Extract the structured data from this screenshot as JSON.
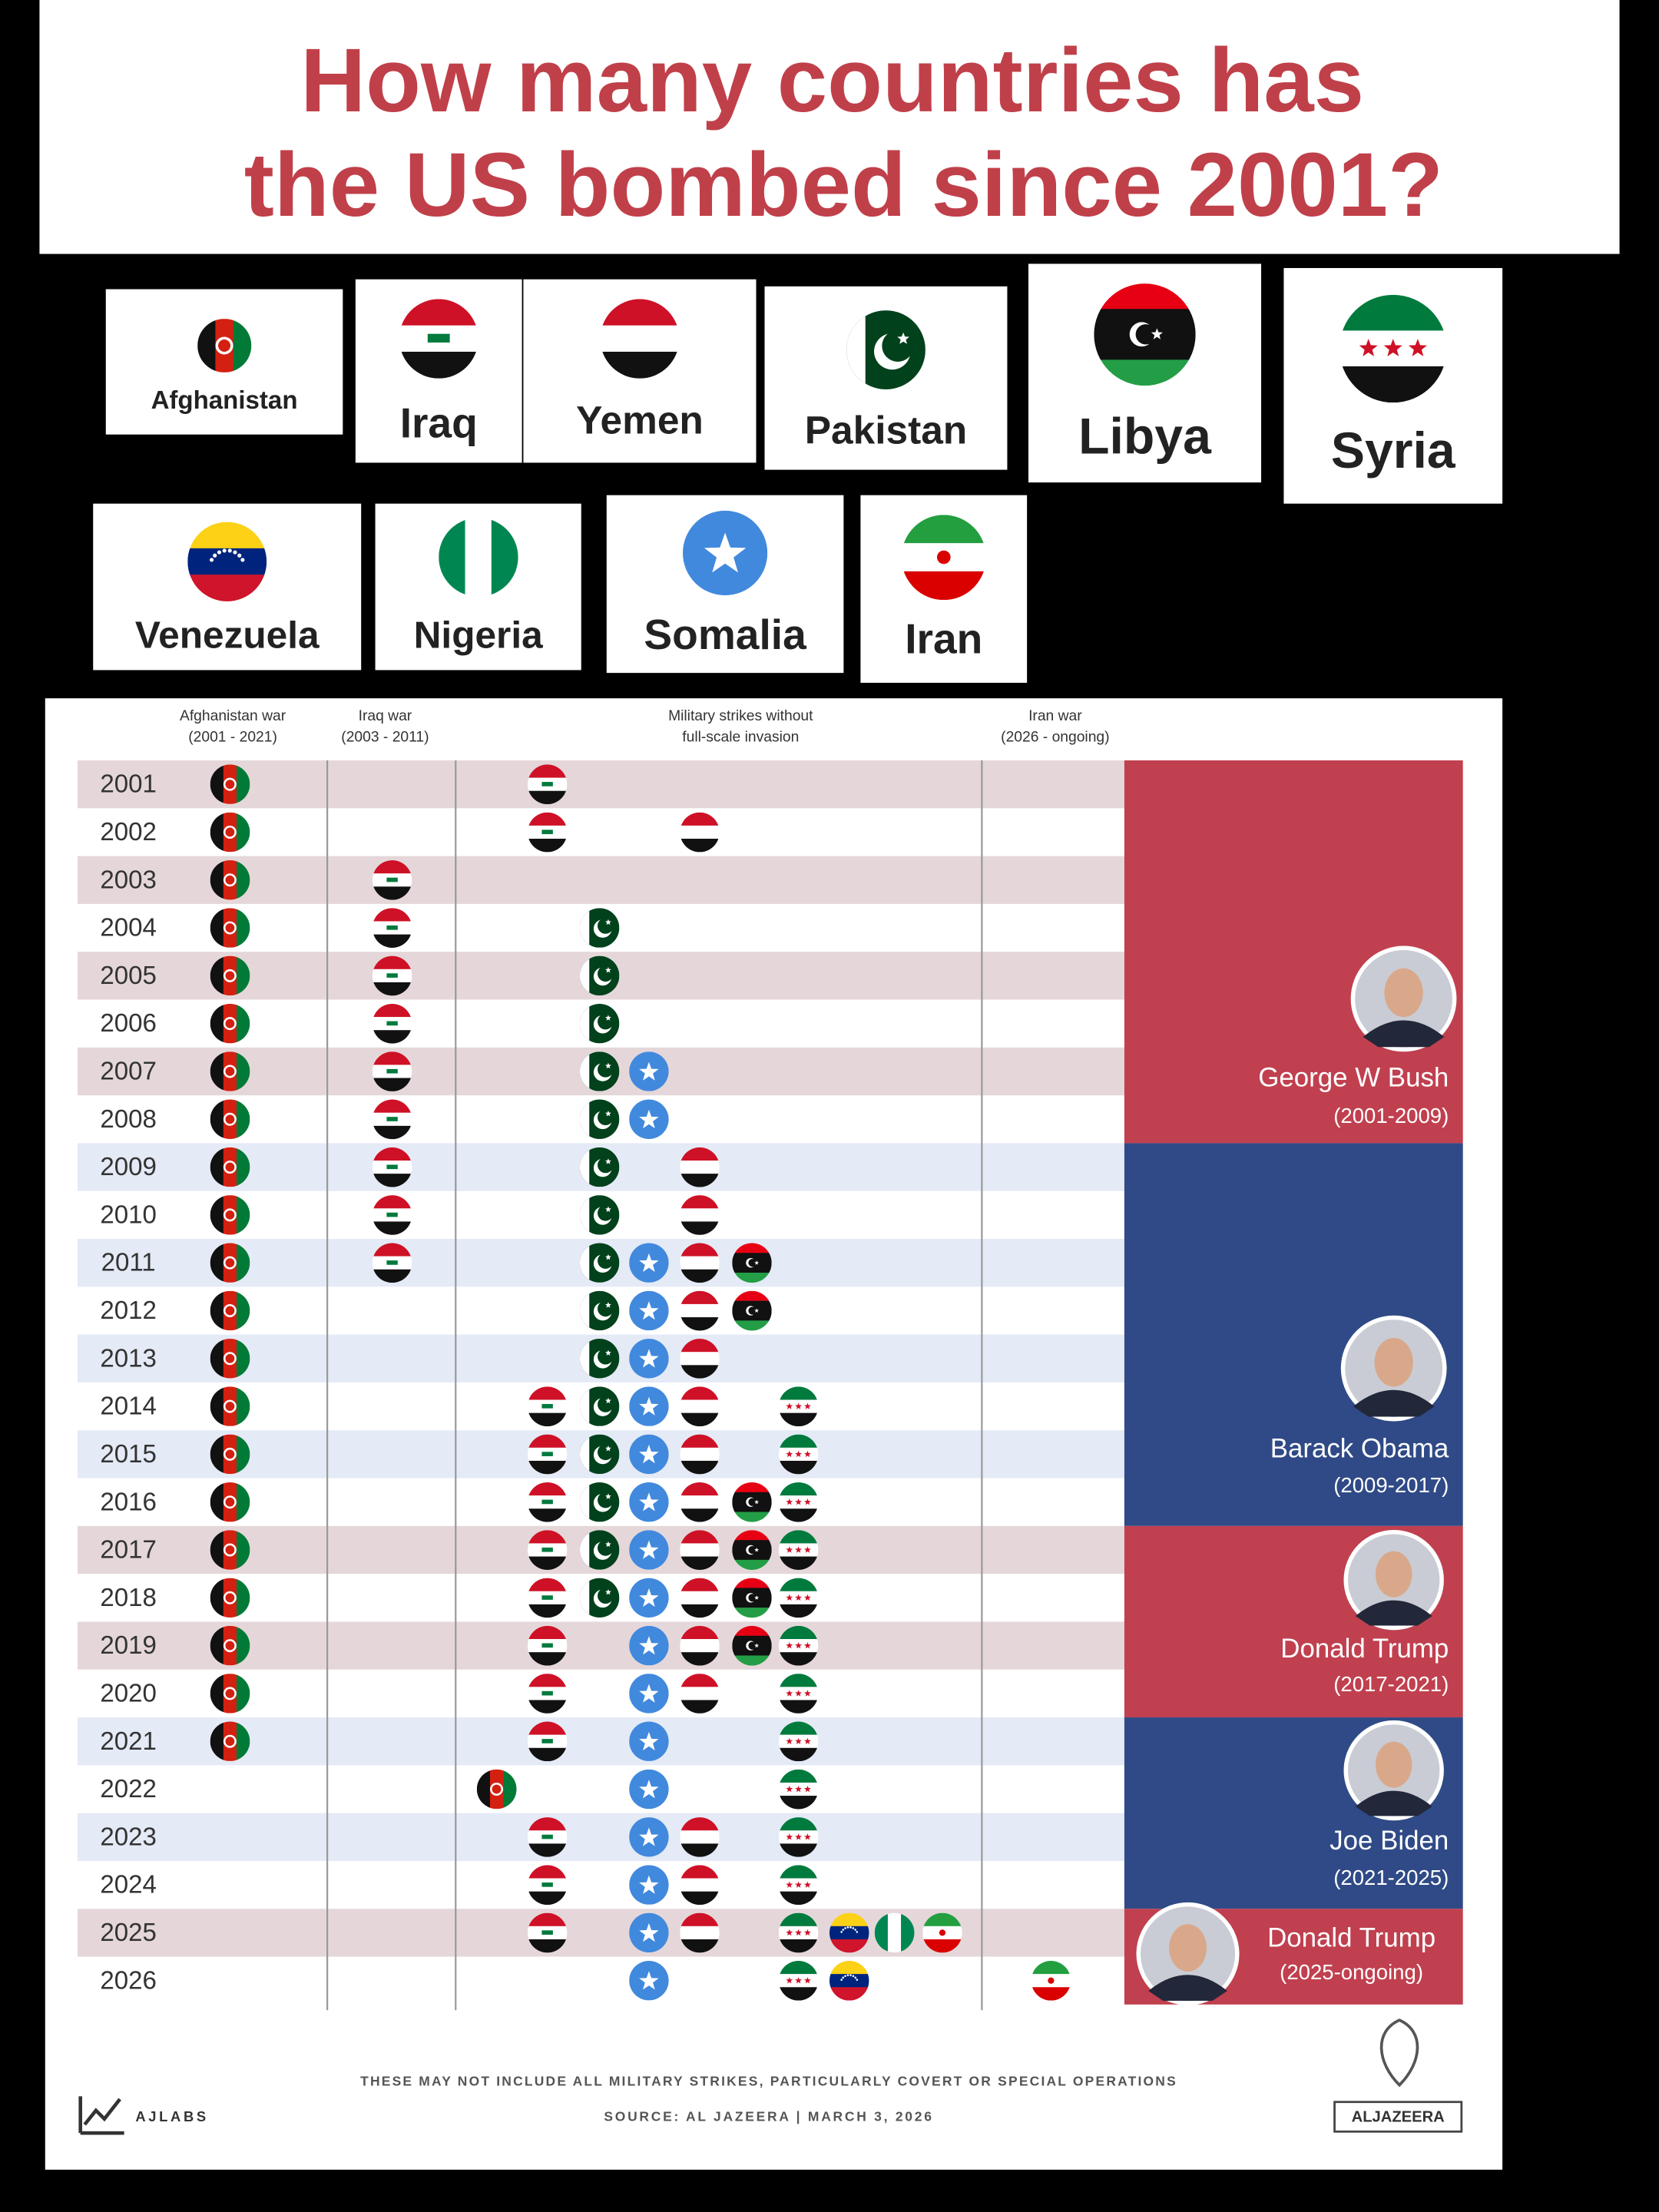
{
  "title_lines": [
    "How many countries has",
    "the US bombed since 2001?"
  ],
  "countries": [
    "Afghanistan",
    "Iraq",
    "Yemen",
    "Pakistan",
    "Libya",
    "Syria",
    "Venezuela",
    "Nigeria",
    "Somalia",
    "Iran"
  ],
  "column_headers": [
    {
      "lines": [
        "Afghanistan war",
        "(2001 - 2021)"
      ]
    },
    {
      "lines": [
        "Iraq war",
        "(2003 - 2011)"
      ]
    },
    {
      "lines": [
        "Military strikes without",
        "full-scale invasion"
      ]
    },
    {
      "lines": [
        "Iran war",
        "(2026 - ongoing)"
      ]
    }
  ],
  "rows": [
    {
      "year": 2001,
      "cells": [
        [
          "Afghanistan"
        ],
        [],
        [
          "Iraq"
        ],
        []
      ]
    },
    {
      "year": 2002,
      "cells": [
        [
          "Afghanistan"
        ],
        [],
        [
          "Iraq",
          "Yemen"
        ],
        []
      ]
    },
    {
      "year": 2003,
      "cells": [
        [
          "Afghanistan"
        ],
        [
          "Iraq"
        ],
        [],
        []
      ]
    },
    {
      "year": 2004,
      "cells": [
        [
          "Afghanistan"
        ],
        [
          "Iraq"
        ],
        [
          "Pakistan"
        ],
        []
      ]
    },
    {
      "year": 2005,
      "cells": [
        [
          "Afghanistan"
        ],
        [
          "Iraq"
        ],
        [
          "Pakistan"
        ],
        []
      ]
    },
    {
      "year": 2006,
      "cells": [
        [
          "Afghanistan"
        ],
        [
          "Iraq"
        ],
        [
          "Pakistan"
        ],
        []
      ]
    },
    {
      "year": 2007,
      "cells": [
        [
          "Afghanistan"
        ],
        [
          "Iraq"
        ],
        [
          "Pakistan",
          "Somalia"
        ],
        []
      ]
    },
    {
      "year": 2008,
      "cells": [
        [
          "Afghanistan"
        ],
        [
          "Iraq"
        ],
        [
          "Pakistan",
          "Somalia"
        ],
        []
      ]
    },
    {
      "year": 2009,
      "cells": [
        [
          "Afghanistan"
        ],
        [
          "Iraq"
        ],
        [
          "Pakistan",
          "Yemen"
        ],
        []
      ]
    },
    {
      "year": 2010,
      "cells": [
        [
          "Afghanistan"
        ],
        [
          "Iraq"
        ],
        [
          "Pakistan",
          "Yemen"
        ],
        []
      ]
    },
    {
      "year": 2011,
      "cells": [
        [
          "Afghanistan"
        ],
        [
          "Iraq"
        ],
        [
          "Pakistan",
          "Somalia",
          "Yemen",
          "Libya"
        ],
        []
      ]
    },
    {
      "year": 2012,
      "cells": [
        [
          "Afghanistan"
        ],
        [],
        [
          "Pakistan",
          "Somalia",
          "Yemen",
          "Libya"
        ],
        []
      ]
    },
    {
      "year": 2013,
      "cells": [
        [
          "Afghanistan"
        ],
        [],
        [
          "Pakistan",
          "Somalia",
          "Yemen"
        ],
        []
      ]
    },
    {
      "year": 2014,
      "cells": [
        [
          "Afghanistan"
        ],
        [],
        [
          "Iraq",
          "Pakistan",
          "Somalia",
          "Yemen",
          "Syria"
        ],
        []
      ]
    },
    {
      "year": 2015,
      "cells": [
        [
          "Afghanistan"
        ],
        [],
        [
          "Iraq",
          "Pakistan",
          "Somalia",
          "Yemen",
          "Syria"
        ],
        []
      ]
    },
    {
      "year": 2016,
      "cells": [
        [
          "Afghanistan"
        ],
        [],
        [
          "Iraq",
          "Pakistan",
          "Somalia",
          "Yemen",
          "Libya",
          "Syria"
        ],
        []
      ]
    },
    {
      "year": 2017,
      "cells": [
        [
          "Afghanistan"
        ],
        [],
        [
          "Iraq",
          "Pakistan",
          "Somalia",
          "Yemen",
          "Libya",
          "Syria"
        ],
        []
      ]
    },
    {
      "year": 2018,
      "cells": [
        [
          "Afghanistan"
        ],
        [],
        [
          "Iraq",
          "Pakistan",
          "Somalia",
          "Yemen",
          "Libya",
          "Syria"
        ],
        []
      ]
    },
    {
      "year": 2019,
      "cells": [
        [
          "Afghanistan"
        ],
        [],
        [
          "Iraq",
          "Somalia",
          "Yemen",
          "Libya",
          "Syria"
        ],
        []
      ]
    },
    {
      "year": 2020,
      "cells": [
        [
          "Afghanistan"
        ],
        [],
        [
          "Iraq",
          "Somalia",
          "Yemen",
          "Syria"
        ],
        []
      ]
    },
    {
      "year": 2021,
      "cells": [
        [
          "Afghanistan"
        ],
        [],
        [
          "Iraq",
          "Somalia",
          "Syria"
        ],
        []
      ]
    },
    {
      "year": 2022,
      "cells": [
        [],
        [],
        [
          "Afghanistan",
          "Somalia",
          "Syria"
        ],
        []
      ]
    },
    {
      "year": 2023,
      "cells": [
        [],
        [],
        [
          "Iraq",
          "Somalia",
          "Yemen",
          "Syria"
        ],
        []
      ]
    },
    {
      "year": 2024,
      "cells": [
        [],
        [],
        [
          "Iraq",
          "Somalia",
          "Yemen",
          "Syria"
        ],
        []
      ]
    },
    {
      "year": 2025,
      "cells": [
        [],
        [],
        [
          "Iraq",
          "Somalia",
          "Yemen",
          "Syria",
          "Venezuela",
          "Nigeria",
          "Iran"
        ],
        []
      ]
    },
    {
      "year": 2026,
      "cells": [
        [],
        [],
        [
          "Somalia",
          "Syria",
          "Venezuela"
        ],
        [
          "Iran"
        ]
      ]
    }
  ],
  "presidents": [
    {
      "name": "George W Bush",
      "term": "(2001-2009)"
    },
    {
      "name": "Barack Obama",
      "term": "(2009-2017)"
    },
    {
      "name": "Donald Trump",
      "term": "(2017-2021)"
    },
    {
      "name": "Joe Biden",
      "term": "(2021-2025)"
    },
    {
      "name": "Donald Trump",
      "term": "(2025-ongoing)"
    }
  ],
  "footer": {
    "note": "THESE MAY NOT INCLUDE ALL MILITARY STRIKES, PARTICULARLY COVERT OR SPECIAL OPERATIONS",
    "source": "SOURCE: AL JAZEERA | MARCH 3, 2026",
    "logo_left": "AJLABS",
    "logo_right": "ALJAZEERA"
  }
}
